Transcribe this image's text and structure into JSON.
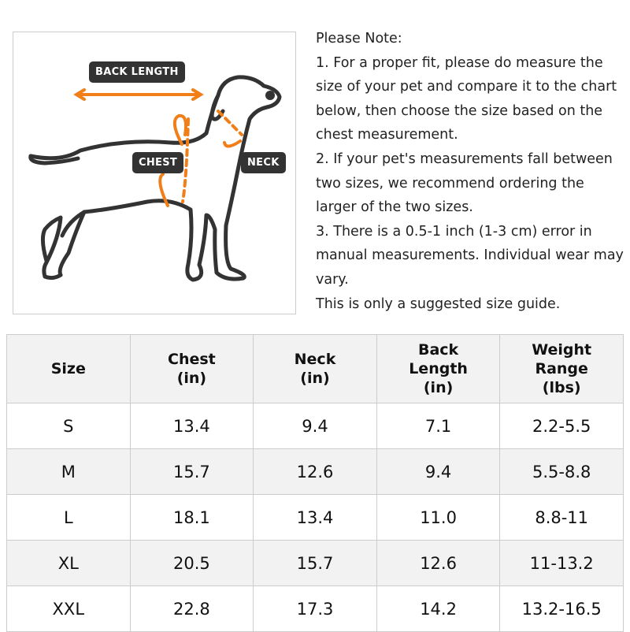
{
  "figure": {
    "back_length": "BACK LENGTH",
    "chest": "CHEST",
    "neck": "NECK"
  },
  "note": [
    "Please Note:",
    "1. For a proper fit, please do measure the size of your pet and compare it to the chart below, then choose the size based on the chest measurement.",
    "2. If your pet's measurements fall between two sizes, we recommend ordering the larger of the two sizes.",
    "3. There is a 0.5-1 inch (1-3 cm) error in manual measurements. Individual wear may vary.",
    "This is only a suggested size guide."
  ],
  "table": {
    "header": [
      "Size",
      "Chest\n(in)",
      "Neck\n(in)",
      "Back\nLength\n(in)",
      "Weight\nRange\n(lbs)"
    ],
    "rows": [
      [
        "S",
        "13.4",
        "9.4",
        "7.1",
        "2.2-5.5"
      ],
      [
        "M",
        "15.7",
        "12.6",
        "9.4",
        "5.5-8.8"
      ],
      [
        "L",
        "18.1",
        "13.4",
        "11.0",
        "8.8-11"
      ],
      [
        "XL",
        "20.5",
        "15.7",
        "12.6",
        "11-13.2"
      ],
      [
        "XXL",
        "22.8",
        "17.3",
        "14.2",
        "13.2-16.5"
      ]
    ]
  }
}
